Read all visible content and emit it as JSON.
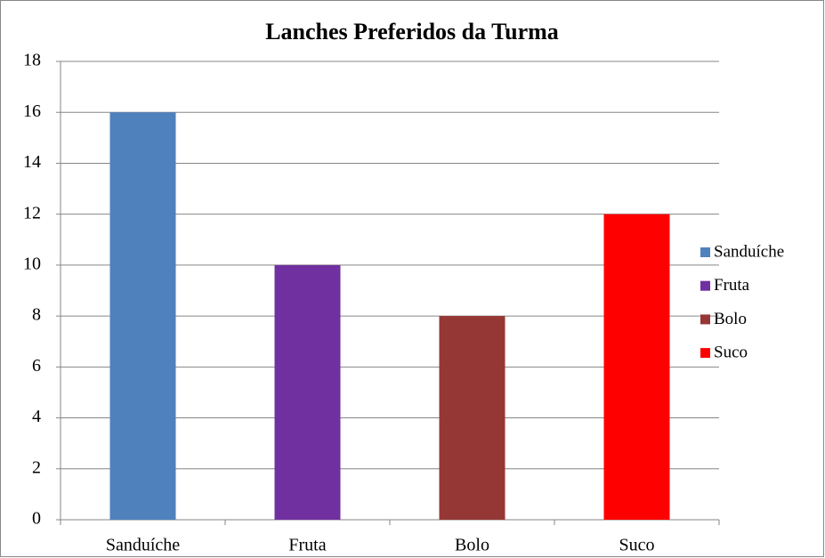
{
  "chart_data": {
    "type": "bar",
    "title": "Lanches Preferidos da Turma",
    "categories": [
      "Sanduíche",
      "Fruta",
      "Bolo",
      "Suco"
    ],
    "values": [
      16,
      10,
      8,
      12
    ],
    "colors": [
      "#4f81bd",
      "#7030a0",
      "#953735",
      "#ff0000"
    ],
    "ylim": [
      0,
      18
    ],
    "yticks": [
      0,
      2,
      4,
      6,
      8,
      10,
      12,
      14,
      16,
      18
    ],
    "grid": true,
    "legend": "right"
  }
}
